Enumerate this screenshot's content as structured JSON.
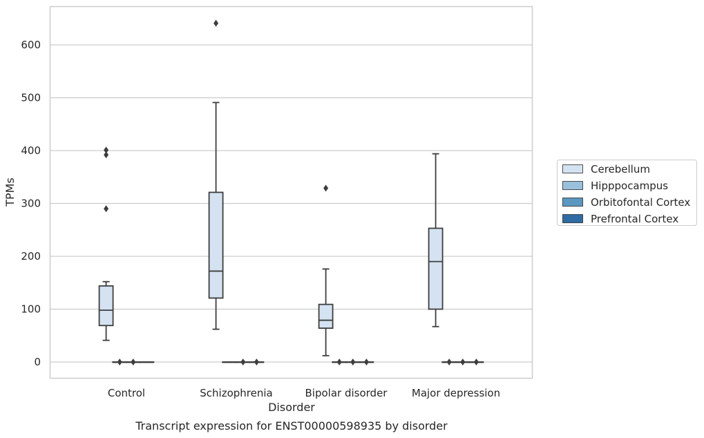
{
  "chart_data": {
    "type": "box",
    "xlabel": "Disorder",
    "ylabel": "TPMs",
    "caption": "Transcript expression for ENST00000598935 by disorder",
    "ylim": [
      -30,
      670
    ],
    "yticks": [
      0,
      100,
      200,
      300,
      400,
      500,
      600
    ],
    "grid": "horizontal",
    "legend_position": "right",
    "categories": [
      "Control",
      "Schizophrenia",
      "Bipolar disorder",
      "Major depression"
    ],
    "series": [
      {
        "name": "Cerebellum",
        "color": "#d4e2f1",
        "boxes": [
          {
            "whisker_low": 41,
            "q1": 69,
            "median": 98,
            "q3": 144,
            "whisker_high": 152,
            "outliers": [
              290,
              392,
              401
            ]
          },
          {
            "whisker_low": 62,
            "q1": 121,
            "median": 172,
            "q3": 321,
            "whisker_high": 491,
            "outliers": [
              641
            ]
          },
          {
            "whisker_low": 12,
            "q1": 64,
            "median": 79,
            "q3": 109,
            "whisker_high": 176,
            "outliers": [
              329
            ]
          },
          {
            "whisker_low": 67,
            "q1": 100,
            "median": 190,
            "q3": 253,
            "whisker_high": 394,
            "outliers": []
          }
        ]
      },
      {
        "name": "Hipppocampus",
        "color": "#9ac1dc",
        "boxes": [
          {
            "whisker_low": 0,
            "q1": 0,
            "median": 0,
            "q3": 0,
            "whisker_high": 0,
            "outliers": [
              0
            ]
          },
          {
            "whisker_low": 0,
            "q1": 0,
            "median": 0,
            "q3": 0,
            "whisker_high": 0,
            "outliers": []
          },
          {
            "whisker_low": 0,
            "q1": 0,
            "median": 0,
            "q3": 0,
            "whisker_high": 0,
            "outliers": [
              0
            ]
          },
          {
            "whisker_low": 0,
            "q1": 0,
            "median": 0,
            "q3": 0,
            "whisker_high": 0,
            "outliers": [
              0
            ]
          }
        ]
      },
      {
        "name": "Orbitofontal Cortex",
        "color": "#5a97c1",
        "boxes": [
          {
            "whisker_low": 0,
            "q1": 0,
            "median": 0,
            "q3": 0,
            "whisker_high": 0,
            "outliers": [
              0
            ]
          },
          {
            "whisker_low": 0,
            "q1": 0,
            "median": 0,
            "q3": 0,
            "whisker_high": 0,
            "outliers": [
              0
            ]
          },
          {
            "whisker_low": 0,
            "q1": 0,
            "median": 0,
            "q3": 0,
            "whisker_high": 0,
            "outliers": [
              0
            ]
          },
          {
            "whisker_low": 0,
            "q1": 0,
            "median": 0,
            "q3": 0,
            "whisker_high": 0,
            "outliers": [
              0
            ]
          }
        ]
      },
      {
        "name": "Prefrontal Cortex",
        "color": "#2f6ca3",
        "boxes": [
          {
            "whisker_low": 0,
            "q1": 0,
            "median": 0,
            "q3": 0,
            "whisker_high": 0,
            "outliers": []
          },
          {
            "whisker_low": 0,
            "q1": 0,
            "median": 0,
            "q3": 0,
            "whisker_high": 0,
            "outliers": [
              0
            ]
          },
          {
            "whisker_low": 0,
            "q1": 0,
            "median": 0,
            "q3": 0,
            "whisker_high": 0,
            "outliers": [
              0
            ]
          },
          {
            "whisker_low": 0,
            "q1": 0,
            "median": 0,
            "q3": 0,
            "whisker_high": 0,
            "outliers": [
              0
            ]
          }
        ]
      }
    ]
  }
}
